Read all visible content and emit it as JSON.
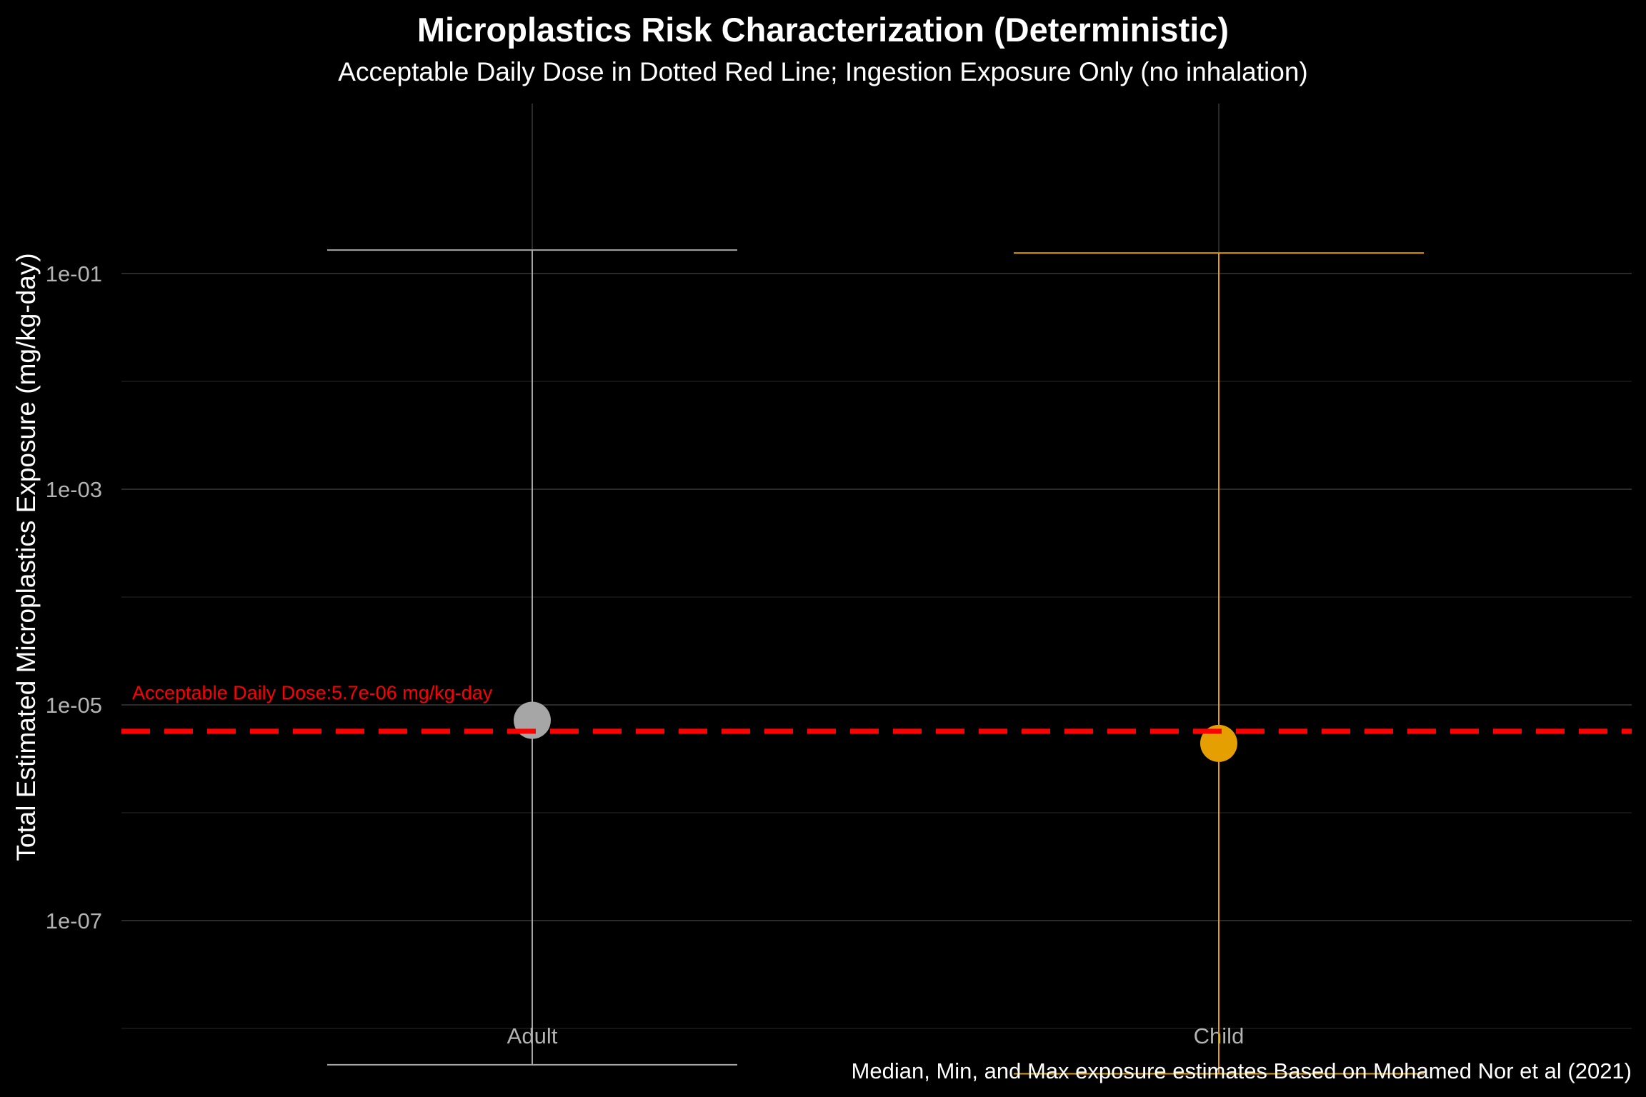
{
  "chart_data": {
    "type": "errorbar",
    "title": "Microplastics Risk Characterization (Deterministic)",
    "subtitle": "Acceptable Daily Dose in Dotted Red Line; Ingestion Exposure Only (no inhalation)",
    "caption": "Median, Min, and Max exposure estimates Based on Mohamed Nor et al (2021)",
    "xlabel": "",
    "ylabel": "Total Estimated Microplastics Exposure (mg/kg-day)",
    "y_scale": "log10",
    "ylim": [
      1.1e-09,
      0.4
    ],
    "y_ticks": [
      {
        "value": 0.1,
        "label": "1e-01"
      },
      {
        "value": 0.001,
        "label": "1e-03"
      },
      {
        "value": 1e-05,
        "label": "1e-05"
      },
      {
        "value": 1e-07,
        "label": "1e-07"
      }
    ],
    "y_minor_ticks": [
      0.01,
      0.0001,
      1e-06,
      1e-08
    ],
    "categories": [
      "Adult",
      "Child"
    ],
    "series": [
      {
        "category": "Adult",
        "median": 7.2e-06,
        "min": 4.6e-09,
        "max": 0.165,
        "color": "#a6a6a6"
      },
      {
        "category": "Child",
        "median": 4.4e-06,
        "min": 3.8e-09,
        "max": 0.155,
        "color": "#e69f00"
      }
    ],
    "reference_line": {
      "value": 5.7e-06,
      "label": "Acceptable Daily Dose:5.7e-06 mg/kg-day",
      "color": "#ff0000",
      "style": "dashed"
    },
    "grid": true,
    "legend": "none",
    "colors": {
      "background": "#000000",
      "grid": "#2a2a2a",
      "text": "#ffffff",
      "tick_text": "#b3b3b3"
    }
  }
}
